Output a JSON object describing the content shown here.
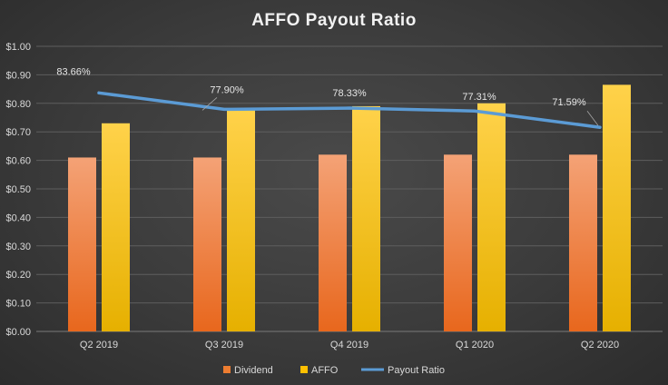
{
  "chart_data": {
    "type": "bar",
    "title": "AFFO Payout Ratio",
    "xlabel": "",
    "ylabel": "",
    "categories": [
      "Q2 2019",
      "Q3 2019",
      "Q4 2019",
      "Q1 2020",
      "Q2 2020"
    ],
    "ylim": [
      0,
      1.0
    ],
    "yticks": [
      "$0.00",
      "$0.10",
      "$0.20",
      "$0.30",
      "$0.40",
      "$0.50",
      "$0.60",
      "$0.70",
      "$0.80",
      "$0.90",
      "$1.00"
    ],
    "ytick_values": [
      0,
      0.1,
      0.2,
      0.3,
      0.4,
      0.5,
      0.6,
      0.7,
      0.8,
      0.9,
      1.0
    ],
    "grid": true,
    "legend_position": "bottom",
    "series": [
      {
        "name": "Dividend",
        "type": "bar",
        "values": [
          0.61,
          0.61,
          0.62,
          0.62,
          0.62
        ],
        "color": "#ed7d31"
      },
      {
        "name": "AFFO",
        "type": "bar",
        "values": [
          0.73,
          0.78,
          0.79,
          0.8,
          0.865
        ],
        "color": "#ffc000"
      },
      {
        "name": "Payout Ratio",
        "type": "line",
        "values": [
          0.8366,
          0.779,
          0.7833,
          0.7731,
          0.7159
        ],
        "labels": [
          "83.66%",
          "77.90%",
          "78.33%",
          "77.31%",
          "71.59%"
        ],
        "color": "#5b9bd5"
      }
    ]
  }
}
